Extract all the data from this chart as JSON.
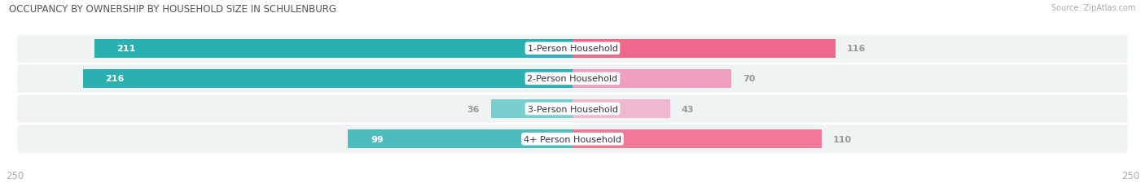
{
  "title": "OCCUPANCY BY OWNERSHIP BY HOUSEHOLD SIZE IN SCHULENBURG",
  "source": "Source: ZipAtlas.com",
  "categories": [
    "1-Person Household",
    "2-Person Household",
    "3-Person Household",
    "4+ Person Household"
  ],
  "owner_values": [
    211,
    216,
    36,
    99
  ],
  "renter_values": [
    116,
    70,
    43,
    110
  ],
  "owner_colors": [
    "#2ab0b0",
    "#2ab0b0",
    "#7acece",
    "#4cbcbc"
  ],
  "renter_colors": [
    "#f0688a",
    "#f0a0be",
    "#f0b8ce",
    "#f07898"
  ],
  "row_bg_color": "#f0f3f4",
  "row_sep_color": "#ffffff",
  "max_val": 250,
  "label_color": "#aaaaaa",
  "value_color_inside": "#ffffff",
  "value_color_outside": "#999999",
  "title_color": "#555555",
  "bg_color": "#ffffff",
  "legend_owner_color": "#2ab0b0",
  "legend_renter_color": "#f0688a"
}
